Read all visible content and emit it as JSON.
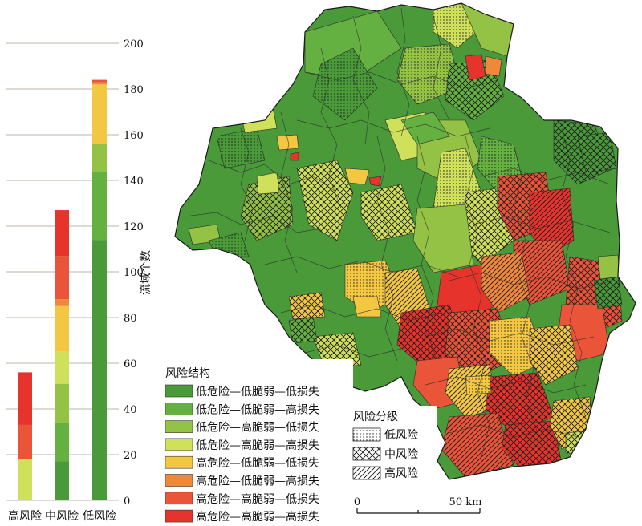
{
  "chart_data": {
    "type": "bar",
    "ylabel": "流域个数",
    "ylim": [
      0,
      200
    ],
    "yticks": [
      0,
      20,
      40,
      60,
      80,
      100,
      120,
      140,
      160,
      180,
      200
    ],
    "categories": [
      "高风险",
      "中风险",
      "低风险"
    ],
    "series": [
      {
        "name": "低危险—低脆弱—低损失",
        "values": [
          0,
          17,
          114
        ]
      },
      {
        "name": "低危险—低脆弱—高损失",
        "values": [
          0,
          17,
          30
        ]
      },
      {
        "name": "低危险—高脆弱—低损失",
        "values": [
          0,
          17,
          12
        ]
      },
      {
        "name": "低危险—高脆弱—高损失",
        "values": [
          18,
          14,
          0
        ]
      },
      {
        "name": "高危险—低脆弱—低损失",
        "values": [
          0,
          20,
          26
        ]
      },
      {
        "name": "高危险—低脆弱—高损失",
        "values": [
          0,
          3,
          1
        ]
      },
      {
        "name": "高危险—高脆弱—低损失",
        "values": [
          15,
          19,
          1
        ]
      },
      {
        "name": "高危险—高脆弱—高损失",
        "values": [
          23,
          20,
          0
        ]
      }
    ],
    "totals": [
      56,
      127,
      184
    ]
  },
  "colors": [
    "#4a9a3a",
    "#64b040",
    "#93c244",
    "#cfe05a",
    "#f4c742",
    "#f0883a",
    "#ea553a",
    "#e6342c"
  ],
  "map": {
    "legend_title": "风险结构",
    "legend_items": [
      "低危险—低脆弱—低损失",
      "低危险—低脆弱—高损失",
      "低危险—高脆弱—低损失",
      "低危险—高脆弱—高损失",
      "高危险—低脆弱—低损失",
      "高危险—低脆弱—高损失",
      "高危险—高脆弱—低损失",
      "高危险—高脆弱—高损失"
    ],
    "risk_title": "风险分级",
    "risk_items": [
      "低风险",
      "中风险",
      "高风险"
    ],
    "risk_patterns": [
      "dots",
      "crosshatch",
      "diagonal"
    ],
    "scale_start": "0",
    "scale_end": "50 km"
  }
}
